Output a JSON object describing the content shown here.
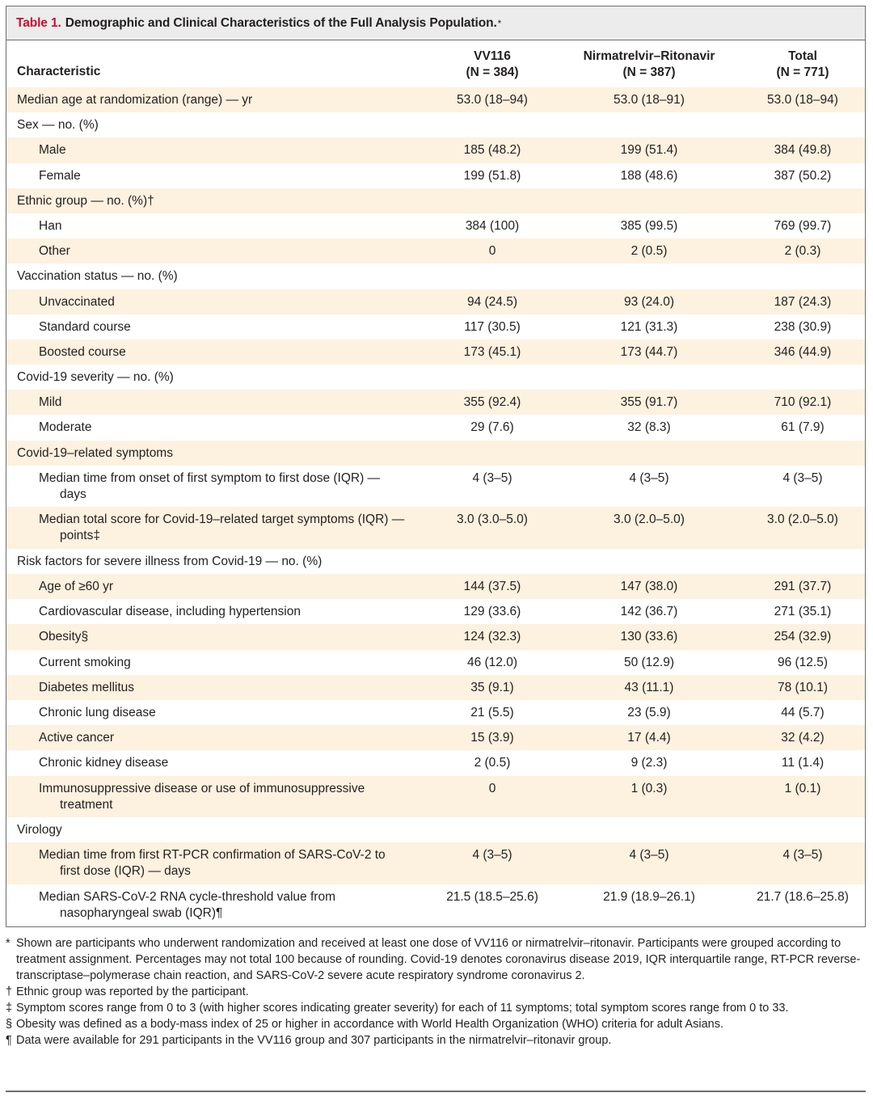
{
  "table": {
    "label": "Table 1.",
    "title": "Demographic and Clinical Characteristics of the Full Analysis Population.",
    "title_mark": "*",
    "headers": {
      "characteristic": "Characteristic",
      "vv116": "VV116",
      "vv116_n": "(N = 384)",
      "nirmatrelvir": "Nirmatrelvir–Ritonavir",
      "nirmatrelvir_n": "(N = 387)",
      "total": "Total",
      "total_n": "(N = 771)"
    },
    "rows": [
      {
        "label": "Median age at randomization (range) — yr",
        "vv116": "53.0 (18–94)",
        "nir": "53.0 (18–91)",
        "total": "53.0 (18–94)"
      },
      {
        "label": "Sex — no. (%)",
        "vv116": "",
        "nir": "",
        "total": ""
      },
      {
        "label": "Male",
        "vv116": "185 (48.2)",
        "nir": "199 (51.4)",
        "total": "384 (49.8)"
      },
      {
        "label": "Female",
        "vv116": "199 (51.8)",
        "nir": "188 (48.6)",
        "total": "387 (50.2)"
      },
      {
        "label": "Ethnic group — no. (%)†",
        "vv116": "",
        "nir": "",
        "total": ""
      },
      {
        "label": "Han",
        "vv116": "384 (100)",
        "nir": "385 (99.5)",
        "total": "769 (99.7)"
      },
      {
        "label": "Other",
        "vv116": "0",
        "nir": "2 (0.5)",
        "total": "2 (0.3)"
      },
      {
        "label": "Vaccination status — no. (%)",
        "vv116": "",
        "nir": "",
        "total": ""
      },
      {
        "label": "Unvaccinated",
        "vv116": "94 (24.5)",
        "nir": "93 (24.0)",
        "total": "187 (24.3)"
      },
      {
        "label": "Standard course",
        "vv116": "117 (30.5)",
        "nir": "121 (31.3)",
        "total": "238 (30.9)"
      },
      {
        "label": "Boosted course",
        "vv116": "173 (45.1)",
        "nir": "173 (44.7)",
        "total": "346 (44.9)"
      },
      {
        "label": "Covid-19 severity — no. (%)",
        "vv116": "",
        "nir": "",
        "total": ""
      },
      {
        "label": "Mild",
        "vv116": "355 (92.4)",
        "nir": "355 (91.7)",
        "total": "710 (92.1)"
      },
      {
        "label": "Moderate",
        "vv116": "29 (7.6)",
        "nir": "32 (8.3)",
        "total": "61 (7.9)"
      },
      {
        "label": "Covid-19–related symptoms",
        "vv116": "",
        "nir": "",
        "total": ""
      },
      {
        "label": "Median time from onset of first symptom to first dose (IQR) — days",
        "vv116": "4 (3–5)",
        "nir": "4 (3–5)",
        "total": "4 (3–5)"
      },
      {
        "label": "Median total score for Covid-19–related target symptoms (IQR) — points‡",
        "vv116": "3.0 (3.0–5.0)",
        "nir": "3.0 (2.0–5.0)",
        "total": "3.0 (2.0–5.0)"
      },
      {
        "label": "Risk factors for severe illness from Covid-19 — no. (%)",
        "vv116": "",
        "nir": "",
        "total": ""
      },
      {
        "label": "Age of ≥60 yr",
        "vv116": "144 (37.5)",
        "nir": "147 (38.0)",
        "total": "291 (37.7)"
      },
      {
        "label": "Cardiovascular disease, including hypertension",
        "vv116": "129 (33.6)",
        "nir": "142 (36.7)",
        "total": "271 (35.1)"
      },
      {
        "label": "Obesity§",
        "vv116": "124 (32.3)",
        "nir": "130 (33.6)",
        "total": "254 (32.9)"
      },
      {
        "label": "Current smoking",
        "vv116": "46 (12.0)",
        "nir": "50 (12.9)",
        "total": "96 (12.5)"
      },
      {
        "label": "Diabetes mellitus",
        "vv116": "35 (9.1)",
        "nir": "43 (11.1)",
        "total": "78 (10.1)"
      },
      {
        "label": "Chronic lung disease",
        "vv116": "21 (5.5)",
        "nir": "23 (5.9)",
        "total": "44 (5.7)"
      },
      {
        "label": "Active cancer",
        "vv116": "15 (3.9)",
        "nir": "17 (4.4)",
        "total": "32 (4.2)"
      },
      {
        "label": "Chronic kidney disease",
        "vv116": "2 (0.5)",
        "nir": "9 (2.3)",
        "total": "11 (1.4)"
      },
      {
        "label": "Immunosuppressive disease or use of immunosuppressive treatment",
        "vv116": "0",
        "nir": "1 (0.3)",
        "total": "1 (0.1)"
      },
      {
        "label": "Virology",
        "vv116": "",
        "nir": "",
        "total": ""
      },
      {
        "label": "Median time from first RT-PCR confirmation of SARS-CoV-2 to first dose (IQR) — days",
        "vv116": "4 (3–5)",
        "nir": "4 (3–5)",
        "total": "4 (3–5)"
      },
      {
        "label": "Median SARS-CoV-2 RNA cycle-threshold value from nasopharyngeal swab (IQR)¶",
        "vv116": "21.5 (18.5–25.6)",
        "nir": "21.9 (18.9–26.1)",
        "total": "21.7 (18.6–25.8)"
      }
    ],
    "footnotes": [
      {
        "symbol": "*",
        "text": "Shown are participants who underwent randomization and received at least one dose of VV116 or nirmatrelvir–ritonavir. Participants were grouped according to treatment assignment. Percentages may not total 100 because of rounding. Covid-19 denotes coronavirus disease 2019, IQR interquartile range, RT-PCR reverse-transcriptase–polymerase chain reaction, and SARS-CoV-2 severe acute respiratory syndrome coronavirus 2."
      },
      {
        "symbol": "†",
        "text": "Ethnic group was reported by the participant."
      },
      {
        "symbol": "‡",
        "text": "Symptom scores range from 0 to 3 (with higher scores indicating greater severity) for each of 11 symptoms; total symptom scores range from 0 to 33."
      },
      {
        "symbol": "§",
        "text": "Obesity was defined as a body-mass index of 25 or higher in accordance with World Health Organization (WHO) criteria for adult Asians."
      },
      {
        "symbol": "¶",
        "text": "Data were available for 291 participants in the VV116 group and 307 participants in the nirmatrelvir–ritonavir group."
      }
    ]
  }
}
